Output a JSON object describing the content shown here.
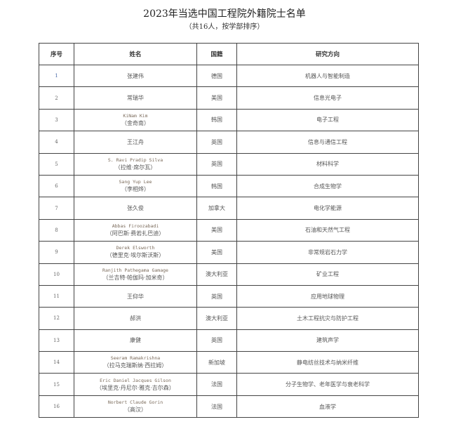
{
  "title": "2023年当选中国工程院外籍院士名单",
  "subtitle": "（共16人，按学部排序）",
  "table": {
    "headers": [
      "序号",
      "姓名",
      "国籍",
      "研究方向"
    ],
    "rows": [
      {
        "no": "1",
        "name_en": "",
        "name_cn": "张建伟",
        "country": "德国",
        "field": "机器人与智能制造"
      },
      {
        "no": "2",
        "name_en": "",
        "name_cn": "常瑞华",
        "country": "美国",
        "field": "信息光电子"
      },
      {
        "no": "3",
        "name_en": "KiNam Kim",
        "name_cn": "（金奇南）",
        "country": "韩国",
        "field": "电子工程"
      },
      {
        "no": "4",
        "name_en": "",
        "name_cn": "王江舟",
        "country": "英国",
        "field": "信息与通信工程"
      },
      {
        "no": "5",
        "name_en": "S. Ravi Pradip Silva",
        "name_cn": "（拉维·席尔瓦）",
        "country": "英国",
        "field": "材料科学"
      },
      {
        "no": "6",
        "name_en": "Sang Yup Lee",
        "name_cn": "（李相烨）",
        "country": "韩国",
        "field": "合成生物学"
      },
      {
        "no": "7",
        "name_en": "",
        "name_cn": "张久俊",
        "country": "加拿大",
        "field": "电化学能源"
      },
      {
        "no": "8",
        "name_en": "Abbas Firoozabadi",
        "name_cn": "（阿巴斯·费若扎巴迪）",
        "country": "美国",
        "field": "石油和天然气工程"
      },
      {
        "no": "9",
        "name_en": "Derek Elsworth",
        "name_cn": "（德里克·埃尔斯沃斯）",
        "country": "美国",
        "field": "非常规岩石力学"
      },
      {
        "no": "10",
        "name_en": "Ranjith Pathegama Gamage",
        "name_cn": "（兰吉特·帕伽玛·加米奇）",
        "country": "澳大利亚",
        "field": "矿业工程"
      },
      {
        "no": "11",
        "name_en": "",
        "name_cn": "王仰华",
        "country": "英国",
        "field": "应用地球物理"
      },
      {
        "no": "12",
        "name_en": "",
        "name_cn": "郝洪",
        "country": "澳大利亚",
        "field": "土木工程抗灾与防护工程"
      },
      {
        "no": "13",
        "name_en": "",
        "name_cn": "康健",
        "country": "英国",
        "field": "建筑声学"
      },
      {
        "no": "14",
        "name_en": "Seeram Ramakrishna",
        "name_cn": "（拉马克瑞斯纳·西拉姆）",
        "country": "新加坡",
        "field": "静电纺丝技术与纳米纤维"
      },
      {
        "no": "15",
        "name_en": "Eric Daniel Jacques Gilson",
        "name_cn": "（埃里克·丹尼尔·雅克·吉尔森）",
        "country": "法国",
        "field": "分子生物学、老年医学与衰老科学"
      },
      {
        "no": "16",
        "name_en": "Norbert Claude Gorin",
        "name_cn": "（高汉）",
        "country": "法国",
        "field": "血液学"
      }
    ]
  }
}
